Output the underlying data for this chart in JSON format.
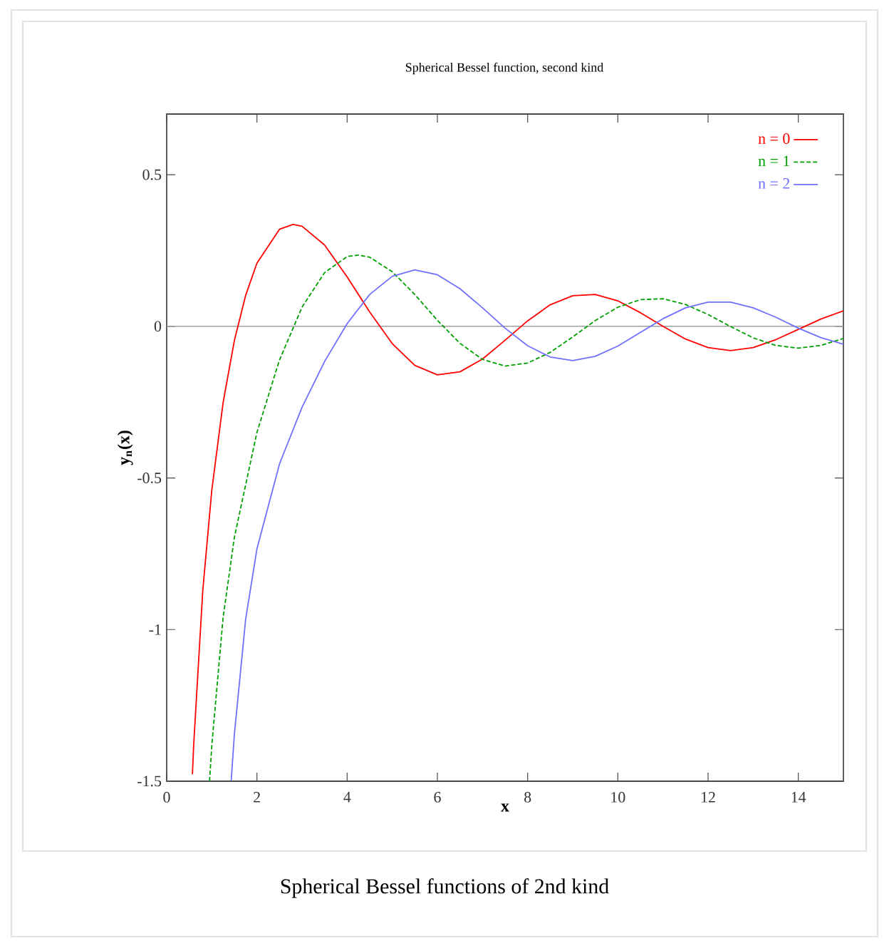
{
  "chart_data": {
    "type": "line",
    "title": "Spherical Bessel function, second kind",
    "xlabel": "x",
    "ylabel": "y$_{n}$(x)",
    "xlim": [
      0,
      15
    ],
    "ylim": [
      -1.5,
      0.7
    ],
    "xticks": [
      0,
      2,
      4,
      6,
      8,
      10,
      12,
      14
    ],
    "yticks": [
      -1.5,
      -1,
      -0.5,
      0,
      0.5
    ],
    "legend": "top right",
    "grid": false,
    "ref_lines": [
      {
        "axis": "y",
        "value": 0,
        "color": "#a0a0a0"
      }
    ],
    "annotations": [
      "Spherical Bessel functions of 2nd kind"
    ],
    "series": [
      {
        "name": "n = 0",
        "color": "#ff0000",
        "line_style": "solid",
        "x": [
          0.57,
          0.6,
          0.8,
          1,
          1.25,
          1.5,
          1.75,
          2,
          2.5,
          2.8,
          3,
          3.5,
          4,
          4.5,
          5,
          5.5,
          6,
          6.5,
          7,
          7.5,
          8,
          8.5,
          9,
          9.5,
          10,
          10.5,
          11,
          11.5,
          12,
          12.5,
          13,
          13.5,
          14,
          14.5,
          15
        ],
        "values": [
          -1.477,
          -1.376,
          -0.871,
          -0.54,
          -0.252,
          -0.047,
          0.102,
          0.208,
          0.32,
          0.336,
          0.33,
          0.268,
          0.163,
          0.047,
          -0.057,
          -0.129,
          -0.16,
          -0.15,
          -0.108,
          -0.046,
          0.018,
          0.071,
          0.101,
          0.105,
          0.084,
          0.045,
          0.0,
          -0.042,
          -0.07,
          -0.08,
          -0.07,
          -0.044,
          -0.01,
          0.024,
          0.051
        ]
      },
      {
        "name": "n = 1",
        "color": "#00a000",
        "line_style": "dashed",
        "x": [
          0.95,
          1,
          1.25,
          1.5,
          2,
          2.5,
          3,
          3.5,
          4,
          4.25,
          4.5,
          5,
          5.5,
          6,
          6.5,
          7,
          7.5,
          8,
          8.5,
          9,
          9.5,
          10,
          10.5,
          11,
          11.5,
          12,
          12.5,
          13,
          13.5,
          14,
          14.5,
          15
        ],
        "values": [
          -1.5,
          -1.382,
          -0.961,
          -0.696,
          -0.35,
          -0.111,
          0.063,
          0.177,
          0.23,
          0.235,
          0.228,
          0.18,
          0.105,
          0.02,
          -0.056,
          -0.109,
          -0.131,
          -0.121,
          -0.086,
          -0.035,
          0.019,
          0.063,
          0.088,
          0.091,
          0.072,
          0.039,
          -0.001,
          -0.038,
          -0.063,
          -0.072,
          -0.063,
          -0.04
        ]
      },
      {
        "name": "n = 2",
        "color": "#7070ff",
        "line_style": "solid",
        "x": [
          1.43,
          1.5,
          1.75,
          2,
          2.5,
          3,
          3.5,
          4,
          4.5,
          5,
          5.5,
          6,
          6.5,
          7,
          7.5,
          8,
          8.5,
          9,
          9.5,
          10,
          10.5,
          11,
          11.5,
          12,
          12.5,
          13,
          13.5,
          14,
          14.5,
          15
        ],
        "values": [
          -1.498,
          -1.346,
          -0.966,
          -0.734,
          -0.454,
          -0.267,
          -0.116,
          0.009,
          0.105,
          0.165,
          0.186,
          0.17,
          0.124,
          0.061,
          -0.006,
          -0.064,
          -0.101,
          -0.113,
          -0.099,
          -0.065,
          -0.02,
          0.025,
          0.061,
          0.08,
          0.08,
          0.061,
          0.03,
          -0.006,
          -0.037,
          -0.059
        ]
      }
    ]
  }
}
